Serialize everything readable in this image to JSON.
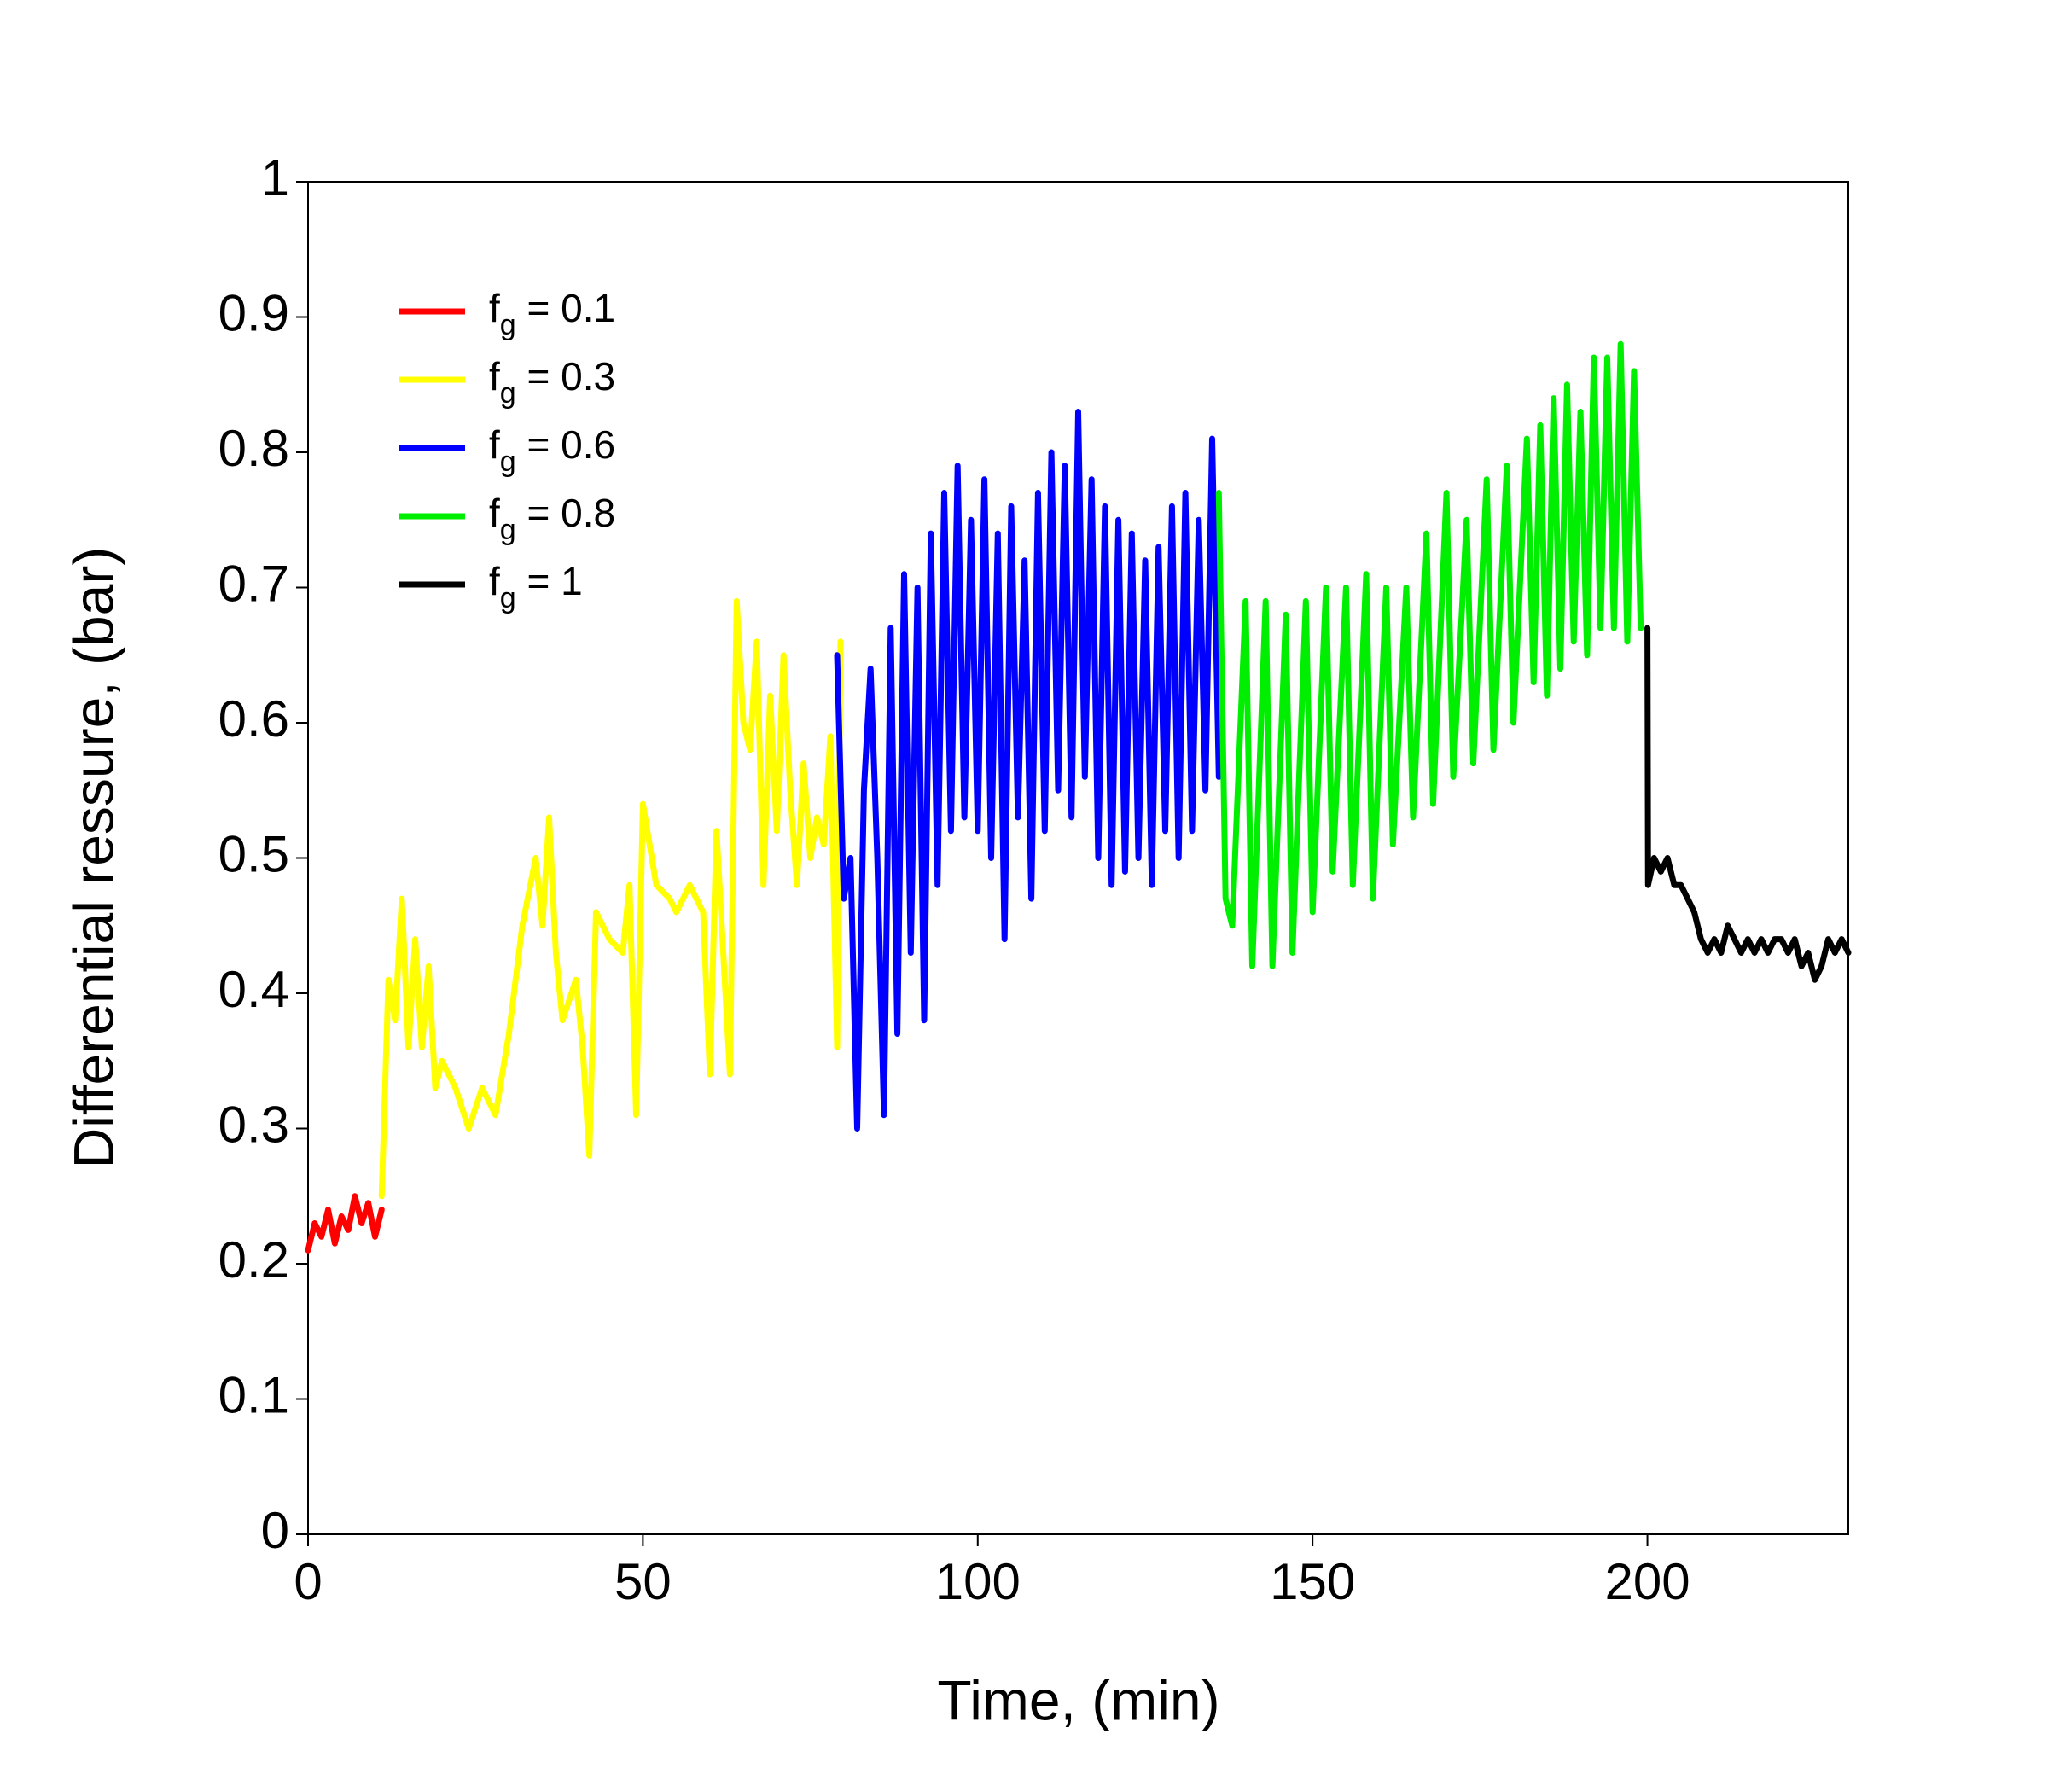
{
  "chart_data": {
    "type": "line",
    "x_label": "Time, (min)",
    "y_label": "Differential ressure, (bar)",
    "xlim": [
      0,
      230
    ],
    "ylim": [
      0,
      1
    ],
    "xticks": [
      0,
      50,
      100,
      150,
      200
    ],
    "yticks": [
      0,
      0.1,
      0.2,
      0.3,
      0.4,
      0.5,
      0.6,
      0.7,
      0.8,
      0.9,
      1
    ],
    "grid": false,
    "legend": "upper left",
    "series": [
      {
        "name": "fg = 0.1",
        "color": "#ff0000",
        "x": [
          0,
          1,
          2,
          3,
          4,
          5,
          6,
          7,
          8,
          9,
          10,
          11
        ],
        "values": [
          0.21,
          0.23,
          0.22,
          0.24,
          0.215,
          0.235,
          0.225,
          0.25,
          0.23,
          0.245,
          0.22,
          0.24
        ]
      },
      {
        "name": "fg = 0.3",
        "color": "#ffff00",
        "x": [
          11,
          12,
          13,
          14,
          15,
          16,
          17,
          18,
          19,
          20,
          22,
          24,
          26,
          28,
          30,
          32,
          34,
          35,
          36,
          37,
          38,
          40,
          41,
          42,
          43,
          45,
          47,
          48,
          49,
          50,
          52,
          54,
          55,
          57,
          59,
          60,
          61,
          62,
          63,
          64,
          65,
          66,
          67,
          68,
          69,
          70,
          71,
          72,
          73,
          74,
          75,
          76,
          77,
          78,
          79,
          79.5
        ],
        "values": [
          0.25,
          0.41,
          0.38,
          0.47,
          0.36,
          0.44,
          0.36,
          0.42,
          0.33,
          0.35,
          0.33,
          0.3,
          0.33,
          0.31,
          0.37,
          0.45,
          0.5,
          0.45,
          0.53,
          0.43,
          0.38,
          0.41,
          0.36,
          0.28,
          0.46,
          0.44,
          0.43,
          0.48,
          0.31,
          0.54,
          0.48,
          0.47,
          0.46,
          0.48,
          0.46,
          0.34,
          0.52,
          0.43,
          0.34,
          0.69,
          0.6,
          0.58,
          0.66,
          0.48,
          0.62,
          0.52,
          0.65,
          0.55,
          0.48,
          0.57,
          0.5,
          0.53,
          0.51,
          0.59,
          0.36,
          0.66
        ]
      },
      {
        "name": "fg = 0.6",
        "color": "#0000ff",
        "x": [
          79,
          80,
          81,
          82,
          83,
          84,
          85,
          86,
          87,
          88,
          89,
          90,
          91,
          92,
          93,
          94,
          95,
          96,
          97,
          98,
          99,
          100,
          101,
          102,
          103,
          104,
          105,
          106,
          107,
          108,
          109,
          110,
          111,
          112,
          113,
          114,
          115,
          116,
          117,
          118,
          119,
          120,
          121,
          122,
          123,
          124,
          125,
          126,
          127,
          128,
          129,
          130,
          131,
          132,
          133,
          134,
          135,
          136
        ],
        "values": [
          0.65,
          0.47,
          0.5,
          0.3,
          0.55,
          0.64,
          0.5,
          0.31,
          0.67,
          0.37,
          0.71,
          0.43,
          0.7,
          0.38,
          0.74,
          0.48,
          0.77,
          0.52,
          0.79,
          0.53,
          0.75,
          0.52,
          0.78,
          0.5,
          0.74,
          0.44,
          0.76,
          0.53,
          0.72,
          0.47,
          0.77,
          0.52,
          0.8,
          0.55,
          0.79,
          0.53,
          0.83,
          0.56,
          0.78,
          0.5,
          0.76,
          0.48,
          0.75,
          0.49,
          0.74,
          0.5,
          0.72,
          0.48,
          0.73,
          0.52,
          0.76,
          0.5,
          0.77,
          0.52,
          0.75,
          0.55,
          0.81,
          0.56
        ]
      },
      {
        "name": "fg = 0.8",
        "color": "#00ee00",
        "x": [
          136,
          137,
          138,
          140,
          141,
          143,
          144,
          146,
          147,
          149,
          150,
          152,
          153,
          155,
          156,
          158,
          159,
          161,
          162,
          164,
          165,
          167,
          168,
          170,
          171,
          173,
          174,
          176,
          177,
          179,
          180,
          182,
          183,
          184,
          185,
          186,
          187,
          188,
          189,
          190,
          191,
          192,
          193,
          194,
          195,
          196,
          197,
          198,
          199
        ],
        "values": [
          0.77,
          0.47,
          0.45,
          0.69,
          0.42,
          0.69,
          0.42,
          0.68,
          0.43,
          0.69,
          0.46,
          0.7,
          0.49,
          0.7,
          0.48,
          0.71,
          0.47,
          0.7,
          0.51,
          0.7,
          0.53,
          0.74,
          0.54,
          0.77,
          0.56,
          0.75,
          0.57,
          0.78,
          0.58,
          0.79,
          0.6,
          0.81,
          0.63,
          0.82,
          0.62,
          0.84,
          0.64,
          0.85,
          0.66,
          0.83,
          0.65,
          0.87,
          0.67,
          0.87,
          0.67,
          0.88,
          0.66,
          0.86,
          0.67
        ]
      },
      {
        "name": "fg = 1",
        "color": "#000000",
        "x": [
          200,
          200.1,
          201,
          202,
          203,
          204,
          205,
          206,
          207,
          208,
          209,
          210,
          211,
          212,
          213,
          214,
          215,
          216,
          217,
          218,
          219,
          220,
          221,
          222,
          223,
          224,
          225,
          226,
          227,
          228,
          229,
          230
        ],
        "values": [
          0.67,
          0.48,
          0.5,
          0.49,
          0.5,
          0.48,
          0.48,
          0.47,
          0.46,
          0.44,
          0.43,
          0.44,
          0.43,
          0.45,
          0.44,
          0.43,
          0.44,
          0.43,
          0.44,
          0.43,
          0.44,
          0.44,
          0.43,
          0.44,
          0.42,
          0.43,
          0.41,
          0.42,
          0.44,
          0.43,
          0.44,
          0.43
        ]
      }
    ]
  }
}
